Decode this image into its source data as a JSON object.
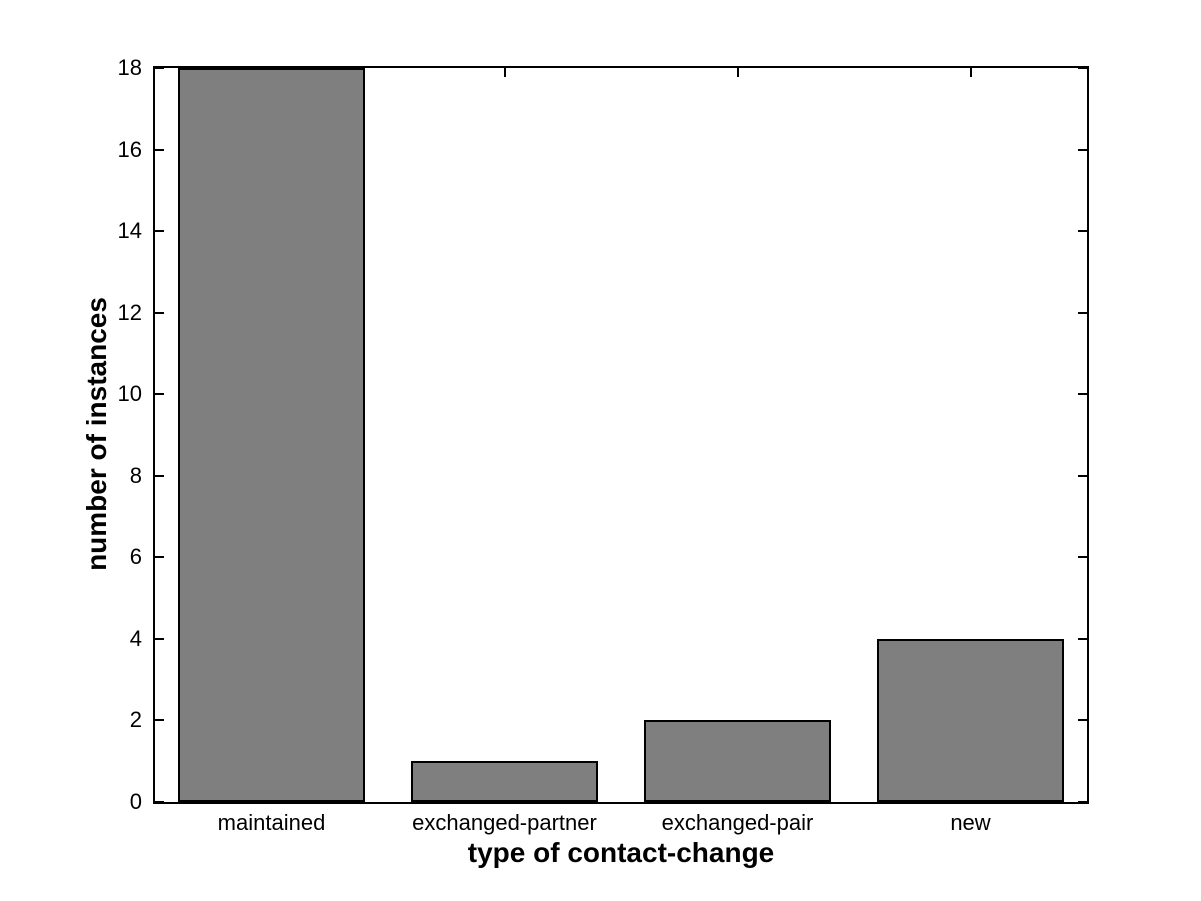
{
  "chart_data": {
    "type": "bar",
    "title": "",
    "categories": [
      "maintained",
      "exchanged-partner",
      "exchanged-pair",
      "new"
    ],
    "values": [
      18,
      1,
      2,
      4
    ],
    "xlabel": "type of contact-change",
    "ylabel": "number of instances",
    "ylim": [
      0,
      18
    ],
    "yticks": [
      0,
      2,
      4,
      6,
      8,
      10,
      12,
      14,
      16,
      18
    ],
    "ytick_labels": [
      "0",
      "2",
      "4",
      "6",
      "8",
      "10",
      "12",
      "14",
      "16",
      "18"
    ],
    "bar_width_fraction": 0.8,
    "grid": false,
    "legend": null,
    "colors": {
      "bar_fill": "#7f7f7f",
      "bar_edge": "#000000",
      "axis": "#000000",
      "plot_background": "#ffffff",
      "figure_background": "#ffffff",
      "text": "#000000"
    }
  }
}
